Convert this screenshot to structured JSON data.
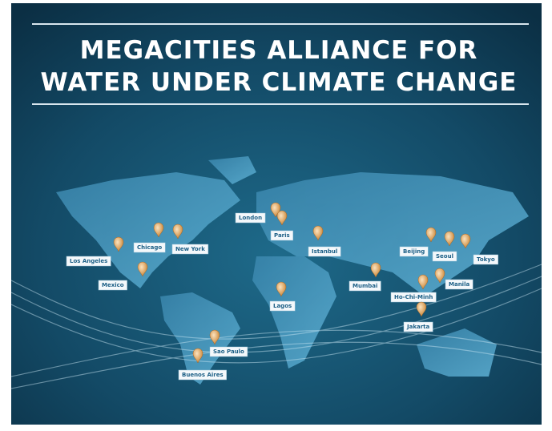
{
  "title": {
    "line1": "MEGACITIES ALLIANCE FOR",
    "line2": "WATER UNDER CLIMATE CHANGE"
  },
  "cities": [
    "London",
    "Paris",
    "Istanbul",
    "Chicago",
    "New York",
    "Los Angeles",
    "Mexico",
    "Lagos",
    "Mumbai",
    "Beijing",
    "Seoul",
    "Tokyo",
    "Manila",
    "Ho-Chi-Minh",
    "Jakarta",
    "Sao Paulo",
    "Buenos Aires"
  ]
}
